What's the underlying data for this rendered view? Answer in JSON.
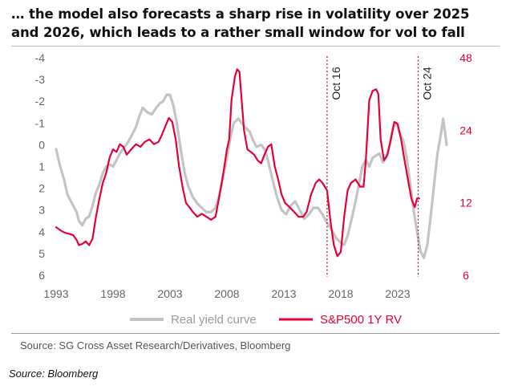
{
  "title_lines": [
    "… the model also forecasts a sharp rise in volatility over 2025",
    "and 2026, which leads to a rather small window for vol to fall"
  ],
  "footnote": "Source: SG Cross Asset Research/Derivatives, Bloomberg",
  "source_label": "Source: Bloomberg",
  "colors": {
    "real_yield": "#c4c4c4",
    "sp500_rv": "#e4003a",
    "axis_text": "#666666",
    "vline": "#9b2c2c"
  },
  "chart_data": {
    "type": "line",
    "title": "… the model also forecasts a sharp rise in volatility over 2025 and 2026, which leads to a rather small window for vol to fall",
    "xlabel": "",
    "x_ticks": [
      1993,
      1998,
      2003,
      2008,
      2013,
      2018,
      2023
    ],
    "xlim": [
      1993,
      2027.3
    ],
    "left_axis": {
      "label": "Real yield curve",
      "inverted": true,
      "ylim": [
        -4,
        6
      ],
      "ticks": [
        -4,
        -3,
        -2,
        -1,
        0,
        1,
        2,
        3,
        4,
        5,
        6
      ]
    },
    "right_axis": {
      "label": "S&P500 1Y RV",
      "scale": "log",
      "ylim": [
        6,
        48
      ],
      "ticks": [
        48,
        24,
        12,
        6
      ]
    },
    "annotations": [
      {
        "x": 2016.8,
        "label": "Oct 16"
      },
      {
        "x": 2024.8,
        "label": "Oct 24"
      }
    ],
    "legend": {
      "placement": "bottom-center",
      "entries": [
        "Real yield curve",
        "S&P500 1Y RV"
      ]
    },
    "series": [
      {
        "name": "Real yield curve",
        "axis": "left",
        "points": [
          [
            1993.0,
            0.2
          ],
          [
            1993.3,
            0.9
          ],
          [
            1993.7,
            1.6
          ],
          [
            1994.0,
            2.3
          ],
          [
            1994.4,
            2.7
          ],
          [
            1994.8,
            3.1
          ],
          [
            1995.0,
            3.5
          ],
          [
            1995.3,
            3.7
          ],
          [
            1995.6,
            3.4
          ],
          [
            1995.9,
            3.3
          ],
          [
            1996.2,
            2.8
          ],
          [
            1996.5,
            2.2
          ],
          [
            1996.8,
            1.8
          ],
          [
            1997.1,
            1.3
          ],
          [
            1997.4,
            1.0
          ],
          [
            1997.7,
            0.9
          ],
          [
            1998.0,
            1.0
          ],
          [
            1998.3,
            0.7
          ],
          [
            1998.6,
            0.4
          ],
          [
            1999.0,
            0.1
          ],
          [
            1999.3,
            -0.1
          ],
          [
            1999.6,
            -0.4
          ],
          [
            2000.0,
            -0.8
          ],
          [
            2000.3,
            -1.3
          ],
          [
            2000.6,
            -1.7
          ],
          [
            2001.0,
            -1.5
          ],
          [
            2001.4,
            -1.4
          ],
          [
            2001.8,
            -1.7
          ],
          [
            2002.1,
            -1.9
          ],
          [
            2002.4,
            -2.0
          ],
          [
            2002.7,
            -2.3
          ],
          [
            2003.0,
            -2.3
          ],
          [
            2003.3,
            -1.8
          ],
          [
            2003.6,
            -1.0
          ],
          [
            2004.0,
            0.4
          ],
          [
            2004.3,
            1.3
          ],
          [
            2004.6,
            1.9
          ],
          [
            2005.0,
            2.4
          ],
          [
            2005.4,
            2.7
          ],
          [
            2005.8,
            2.9
          ],
          [
            2006.2,
            3.1
          ],
          [
            2006.6,
            3.1
          ],
          [
            2007.0,
            2.9
          ],
          [
            2007.3,
            2.4
          ],
          [
            2007.6,
            1.6
          ],
          [
            2008.0,
            0.6
          ],
          [
            2008.3,
            -0.3
          ],
          [
            2008.6,
            -1.0
          ],
          [
            2009.0,
            -1.2
          ],
          [
            2009.3,
            -1.0
          ],
          [
            2009.6,
            -0.8
          ],
          [
            2010.0,
            -0.6
          ],
          [
            2010.3,
            -0.2
          ],
          [
            2010.6,
            0.1
          ],
          [
            2011.0,
            0.0
          ],
          [
            2011.3,
            0.2
          ],
          [
            2011.6,
            0.7
          ],
          [
            2012.0,
            1.6
          ],
          [
            2012.4,
            2.4
          ],
          [
            2012.8,
            3.0
          ],
          [
            2013.2,
            3.2
          ],
          [
            2013.6,
            2.8
          ],
          [
            2014.0,
            2.6
          ],
          [
            2014.4,
            3.0
          ],
          [
            2014.8,
            3.4
          ],
          [
            2015.2,
            3.2
          ],
          [
            2015.6,
            2.9
          ],
          [
            2016.0,
            2.9
          ],
          [
            2016.4,
            3.2
          ],
          [
            2016.8,
            3.6
          ],
          [
            2017.2,
            3.9
          ],
          [
            2017.6,
            4.3
          ],
          [
            2018.0,
            4.5
          ],
          [
            2018.3,
            4.6
          ],
          [
            2018.6,
            4.2
          ],
          [
            2019.0,
            3.3
          ],
          [
            2019.3,
            2.6
          ],
          [
            2019.6,
            1.8
          ],
          [
            2019.9,
            1.0
          ],
          [
            2020.2,
            0.7
          ],
          [
            2020.5,
            1.0
          ],
          [
            2020.8,
            0.6
          ],
          [
            2021.1,
            0.5
          ],
          [
            2021.4,
            0.4
          ],
          [
            2021.7,
            0.8
          ],
          [
            2022.0,
            0.6
          ],
          [
            2022.3,
            0.0
          ],
          [
            2022.6,
            -0.8
          ],
          [
            2022.9,
            -1.0
          ],
          [
            2023.2,
            -0.5
          ],
          [
            2023.5,
            -0.2
          ],
          [
            2023.8,
            0.6
          ],
          [
            2024.1,
            1.8
          ],
          [
            2024.4,
            3.0
          ],
          [
            2024.7,
            4.0
          ],
          [
            2025.0,
            4.9
          ],
          [
            2025.3,
            5.2
          ],
          [
            2025.6,
            4.6
          ],
          [
            2025.9,
            3.3
          ],
          [
            2026.2,
            1.8
          ],
          [
            2026.5,
            0.4
          ],
          [
            2026.8,
            -0.5
          ],
          [
            2027.0,
            -1.2
          ],
          [
            2027.3,
            0.0
          ]
        ]
      },
      {
        "name": "S&P500 1Y RV",
        "axis": "right",
        "points": [
          [
            1993.0,
            9.5
          ],
          [
            1993.4,
            9.2
          ],
          [
            1993.8,
            9.0
          ],
          [
            1994.2,
            8.9
          ],
          [
            1994.5,
            8.8
          ],
          [
            1994.8,
            8.4
          ],
          [
            1995.0,
            8.0
          ],
          [
            1995.3,
            8.1
          ],
          [
            1995.6,
            8.3
          ],
          [
            1995.9,
            8.0
          ],
          [
            1996.2,
            8.5
          ],
          [
            1996.5,
            10.5
          ],
          [
            1996.8,
            12.5
          ],
          [
            1997.1,
            14.5
          ],
          [
            1997.4,
            16.0
          ],
          [
            1997.7,
            18.5
          ],
          [
            1998.0,
            20.0
          ],
          [
            1998.3,
            19.5
          ],
          [
            1998.6,
            21.0
          ],
          [
            1998.9,
            20.5
          ],
          [
            1999.2,
            19.0
          ],
          [
            1999.6,
            20.0
          ],
          [
            2000.0,
            21.0
          ],
          [
            2000.4,
            20.5
          ],
          [
            2000.8,
            21.5
          ],
          [
            2001.2,
            22.0
          ],
          [
            2001.6,
            21.0
          ],
          [
            2002.0,
            21.5
          ],
          [
            2002.3,
            23.0
          ],
          [
            2002.6,
            25.0
          ],
          [
            2002.9,
            27.0
          ],
          [
            2003.2,
            26.0
          ],
          [
            2003.5,
            22.0
          ],
          [
            2003.8,
            17.0
          ],
          [
            2004.1,
            14.0
          ],
          [
            2004.4,
            12.0
          ],
          [
            2004.7,
            11.5
          ],
          [
            2005.0,
            11.0
          ],
          [
            2005.4,
            10.5
          ],
          [
            2005.8,
            10.8
          ],
          [
            2006.2,
            10.5
          ],
          [
            2006.6,
            10.2
          ],
          [
            2007.0,
            10.5
          ],
          [
            2007.3,
            12.5
          ],
          [
            2007.6,
            15.0
          ],
          [
            2008.0,
            20.0
          ],
          [
            2008.2,
            22.0
          ],
          [
            2008.4,
            32.0
          ],
          [
            2008.7,
            40.0
          ],
          [
            2008.9,
            43.0
          ],
          [
            2009.1,
            42.0
          ],
          [
            2009.3,
            32.0
          ],
          [
            2009.5,
            24.0
          ],
          [
            2009.8,
            20.0
          ],
          [
            2010.1,
            19.5
          ],
          [
            2010.4,
            19.0
          ],
          [
            2010.7,
            18.0
          ],
          [
            2011.0,
            17.5
          ],
          [
            2011.3,
            19.0
          ],
          [
            2011.6,
            20.5
          ],
          [
            2011.9,
            21.0
          ],
          [
            2012.2,
            17.0
          ],
          [
            2012.5,
            15.0
          ],
          [
            2012.8,
            13.0
          ],
          [
            2013.1,
            12.0
          ],
          [
            2013.5,
            11.5
          ],
          [
            2013.9,
            11.0
          ],
          [
            2014.3,
            10.5
          ],
          [
            2014.7,
            10.5
          ],
          [
            2015.0,
            11.0
          ],
          [
            2015.4,
            13.0
          ],
          [
            2015.8,
            14.5
          ],
          [
            2016.1,
            15.0
          ],
          [
            2016.4,
            14.5
          ],
          [
            2016.8,
            13.5
          ],
          [
            2017.1,
            10.0
          ],
          [
            2017.4,
            8.0
          ],
          [
            2017.7,
            7.2
          ],
          [
            2018.0,
            7.5
          ],
          [
            2018.3,
            10.5
          ],
          [
            2018.6,
            13.5
          ],
          [
            2018.9,
            14.5
          ],
          [
            2019.3,
            15.0
          ],
          [
            2019.7,
            14.0
          ],
          [
            2020.0,
            14.0
          ],
          [
            2020.2,
            18.0
          ],
          [
            2020.5,
            32.0
          ],
          [
            2020.8,
            35.0
          ],
          [
            2021.1,
            35.5
          ],
          [
            2021.3,
            34.0
          ],
          [
            2021.5,
            22.0
          ],
          [
            2021.8,
            18.0
          ],
          [
            2022.1,
            19.0
          ],
          [
            2022.4,
            22.0
          ],
          [
            2022.7,
            26.0
          ],
          [
            2023.0,
            25.5
          ],
          [
            2023.3,
            22.0
          ],
          [
            2023.6,
            18.0
          ],
          [
            2023.9,
            15.0
          ],
          [
            2024.2,
            12.5
          ],
          [
            2024.5,
            11.5
          ],
          [
            2024.7,
            12.5
          ],
          [
            2024.9,
            12.5
          ]
        ]
      }
    ]
  }
}
